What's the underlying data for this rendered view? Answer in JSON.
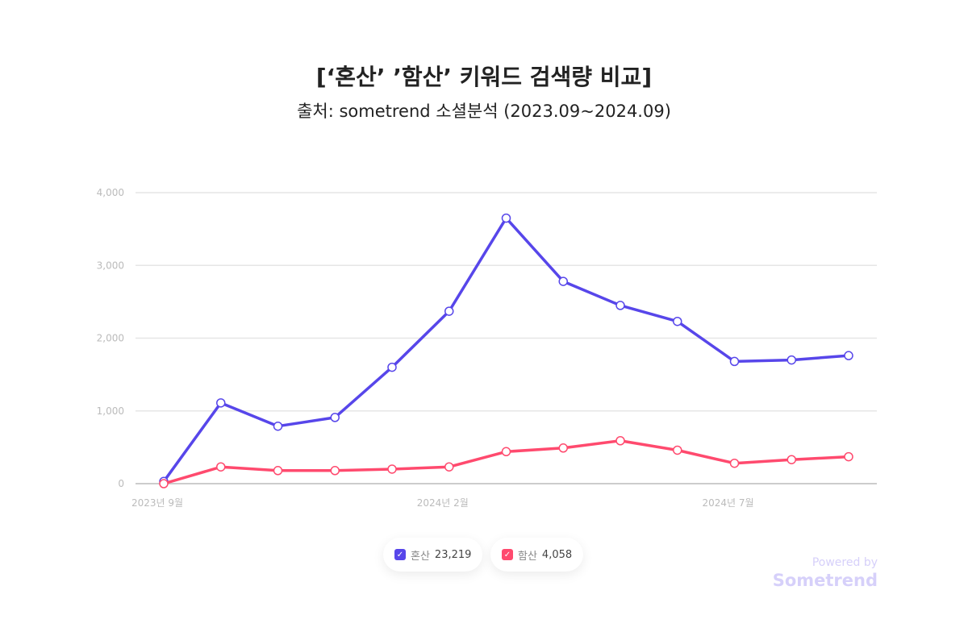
{
  "chart_data": {
    "type": "line",
    "title": "[‘혼산’ ’함산’ 키워드 검색량 비교]",
    "subtitle": "출처: sometrend 소셜분석 (2023.09~2024.09)",
    "x": [
      "2023.09",
      "2023.10",
      "2023.11",
      "2023.12",
      "2024.01",
      "2024.02",
      "2024.03",
      "2024.04",
      "2024.05",
      "2024.06",
      "2024.07",
      "2024.08",
      "2024.09"
    ],
    "x_tick_labels": [
      {
        "index": 0,
        "label": "2023년 9월"
      },
      {
        "index": 5,
        "label": "2024년 2월"
      },
      {
        "index": 10,
        "label": "2024년 7월"
      }
    ],
    "y_ticks": [
      "0",
      "1,000",
      "2,000",
      "3,000",
      "4,000"
    ],
    "ylim": [
      0,
      4000
    ],
    "grid": true,
    "legend_position": "bottom",
    "series": [
      {
        "name": "혼산",
        "total": "23,219",
        "color": "#5746ea",
        "values": [
          30,
          1110,
          790,
          910,
          1600,
          2370,
          3650,
          2780,
          2450,
          2230,
          1680,
          1700,
          1760
        ]
      },
      {
        "name": "함산",
        "total": "4,058",
        "color": "#ff4a6e",
        "values": [
          0,
          230,
          180,
          180,
          200,
          230,
          440,
          490,
          590,
          460,
          280,
          330,
          370
        ]
      }
    ]
  },
  "watermark": {
    "powered": "Powered by",
    "brand": "Sometrend"
  }
}
